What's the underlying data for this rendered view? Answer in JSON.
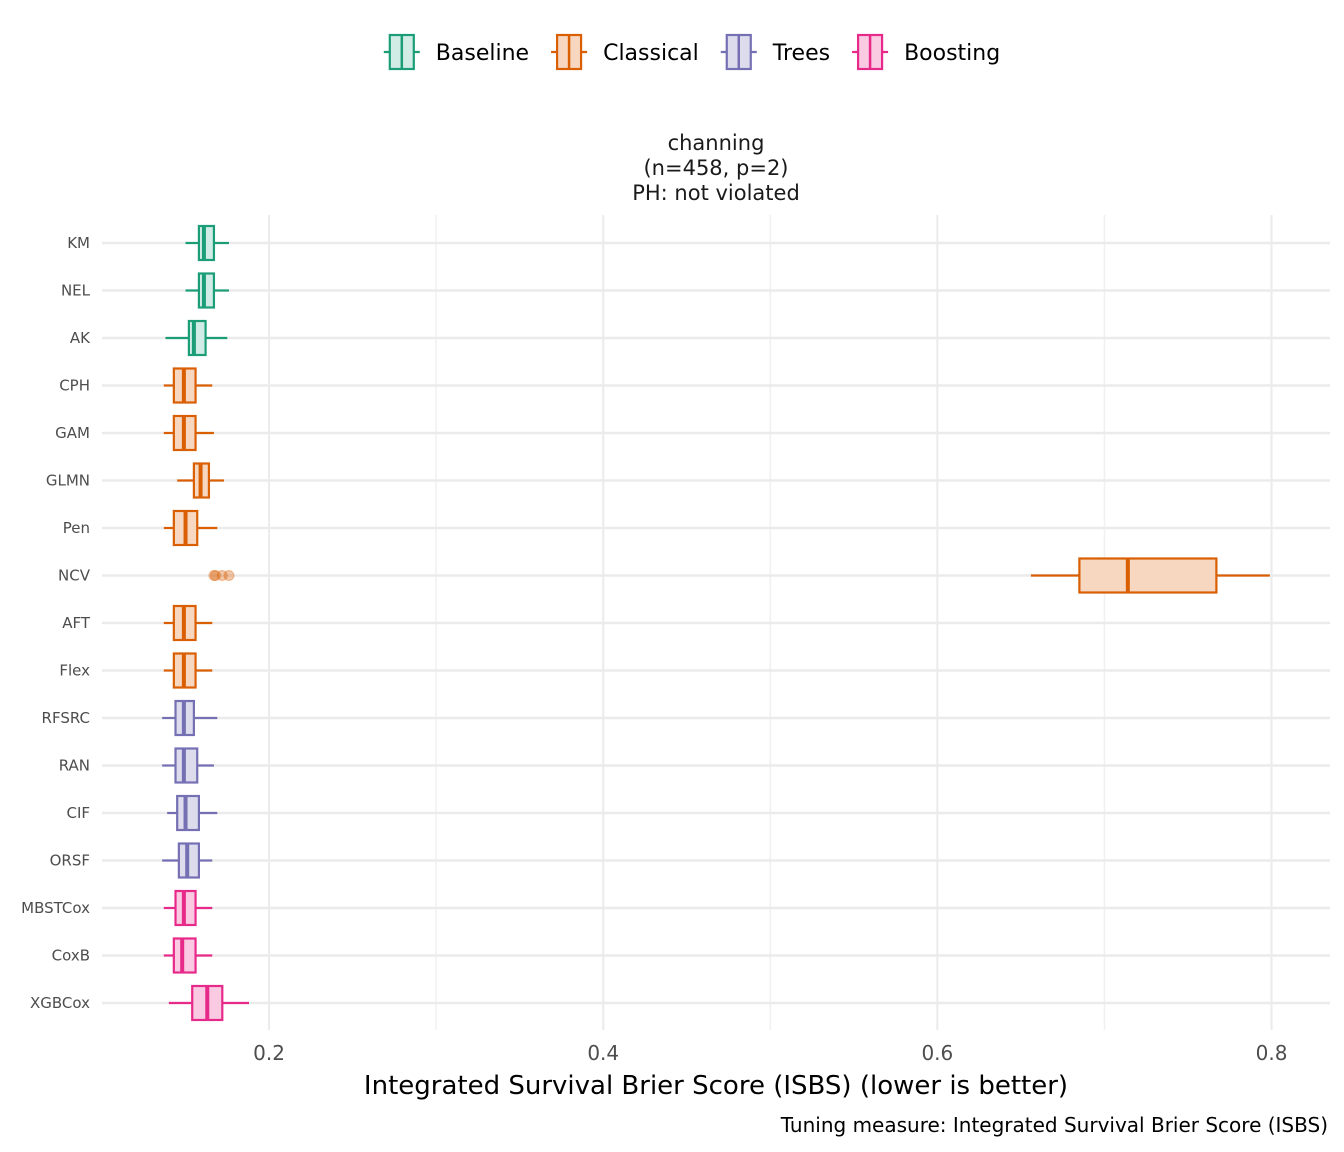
{
  "chart_data": {
    "type": "boxplot",
    "orientation": "horizontal",
    "title_lines": [
      "channing",
      "(n=458, p=2)",
      "PH: not violated"
    ],
    "xlabel": "Integrated Survival Brier Score (ISBS) (lower is better)",
    "caption": "Tuning measure: Integrated Survival Brier Score (ISBS)",
    "xlim": [
      0.1,
      0.835
    ],
    "xticks": [
      0.2,
      0.4,
      0.6,
      0.8
    ],
    "xtick_labels": [
      "0.2",
      "0.4",
      "0.6",
      "0.8"
    ],
    "grid": true,
    "legend_position": "top",
    "groups": [
      {
        "name": "Baseline",
        "color": "#1b9e77",
        "fill": "#d1ece4"
      },
      {
        "name": "Classical",
        "color": "#d95f02",
        "fill": "#f7d7c0"
      },
      {
        "name": "Trees",
        "color": "#7570b3",
        "fill": "#dddcec"
      },
      {
        "name": "Boosting",
        "color": "#e7298a",
        "fill": "#f9cae2"
      }
    ],
    "series": [
      {
        "name": "KM",
        "group": "Baseline",
        "whisker_low": 0.15,
        "q1": 0.158,
        "median": 0.161,
        "q3": 0.167,
        "whisker_high": 0.176,
        "outliers": []
      },
      {
        "name": "NEL",
        "group": "Baseline",
        "whisker_low": 0.15,
        "q1": 0.158,
        "median": 0.161,
        "q3": 0.167,
        "whisker_high": 0.176,
        "outliers": []
      },
      {
        "name": "AK",
        "group": "Baseline",
        "whisker_low": 0.138,
        "q1": 0.152,
        "median": 0.155,
        "q3": 0.162,
        "whisker_high": 0.175,
        "outliers": []
      },
      {
        "name": "CPH",
        "group": "Classical",
        "whisker_low": 0.137,
        "q1": 0.143,
        "median": 0.149,
        "q3": 0.156,
        "whisker_high": 0.166,
        "outliers": []
      },
      {
        "name": "GAM",
        "group": "Classical",
        "whisker_low": 0.137,
        "q1": 0.143,
        "median": 0.149,
        "q3": 0.156,
        "whisker_high": 0.167,
        "outliers": []
      },
      {
        "name": "GLMN",
        "group": "Classical",
        "whisker_low": 0.145,
        "q1": 0.155,
        "median": 0.159,
        "q3": 0.164,
        "whisker_high": 0.173,
        "outliers": []
      },
      {
        "name": "Pen",
        "group": "Classical",
        "whisker_low": 0.137,
        "q1": 0.143,
        "median": 0.15,
        "q3": 0.157,
        "whisker_high": 0.169,
        "outliers": []
      },
      {
        "name": "NCV",
        "group": "Classical",
        "whisker_low": 0.656,
        "q1": 0.685,
        "median": 0.714,
        "q3": 0.767,
        "whisker_high": 0.799,
        "outliers": [
          0.167,
          0.168,
          0.172,
          0.176
        ]
      },
      {
        "name": "AFT",
        "group": "Classical",
        "whisker_low": 0.137,
        "q1": 0.143,
        "median": 0.149,
        "q3": 0.156,
        "whisker_high": 0.166,
        "outliers": []
      },
      {
        "name": "Flex",
        "group": "Classical",
        "whisker_low": 0.137,
        "q1": 0.143,
        "median": 0.149,
        "q3": 0.156,
        "whisker_high": 0.166,
        "outliers": []
      },
      {
        "name": "RFSRC",
        "group": "Trees",
        "whisker_low": 0.136,
        "q1": 0.144,
        "median": 0.149,
        "q3": 0.155,
        "whisker_high": 0.169,
        "outliers": []
      },
      {
        "name": "RAN",
        "group": "Trees",
        "whisker_low": 0.136,
        "q1": 0.144,
        "median": 0.149,
        "q3": 0.157,
        "whisker_high": 0.167,
        "outliers": []
      },
      {
        "name": "CIF",
        "group": "Trees",
        "whisker_low": 0.139,
        "q1": 0.145,
        "median": 0.15,
        "q3": 0.158,
        "whisker_high": 0.169,
        "outliers": []
      },
      {
        "name": "ORSF",
        "group": "Trees",
        "whisker_low": 0.136,
        "q1": 0.146,
        "median": 0.151,
        "q3": 0.158,
        "whisker_high": 0.166,
        "outliers": []
      },
      {
        "name": "MBSTCox",
        "group": "Boosting",
        "whisker_low": 0.137,
        "q1": 0.144,
        "median": 0.149,
        "q3": 0.156,
        "whisker_high": 0.166,
        "outliers": []
      },
      {
        "name": "CoxB",
        "group": "Boosting",
        "whisker_low": 0.137,
        "q1": 0.143,
        "median": 0.148,
        "q3": 0.156,
        "whisker_high": 0.166,
        "outliers": []
      },
      {
        "name": "XGBCox",
        "group": "Boosting",
        "whisker_low": 0.14,
        "q1": 0.154,
        "median": 0.163,
        "q3": 0.172,
        "whisker_high": 0.188,
        "outliers": []
      }
    ]
  }
}
